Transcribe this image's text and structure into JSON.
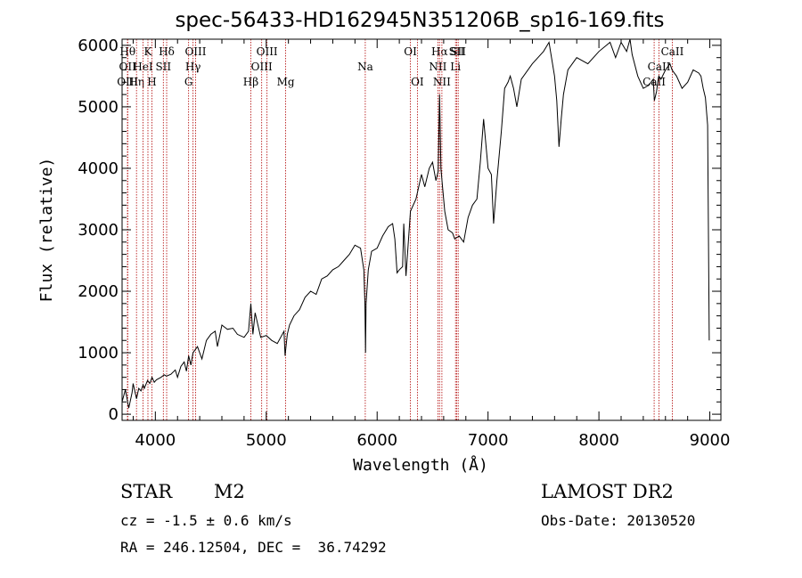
{
  "chart_data": {
    "type": "line",
    "title": "spec-56433-HD162945N351206B_sp16-169.fits",
    "xlabel": "Wavelength (Å)",
    "ylabel": "Flux (relative)",
    "xlim": [
      3700,
      9100
    ],
    "ylim": [
      -100,
      6100
    ],
    "xticks": [
      4000,
      5000,
      6000,
      7000,
      8000,
      9000
    ],
    "yticks": [
      0,
      1000,
      2000,
      3000,
      4000,
      5000,
      6000
    ],
    "grid": false,
    "series": [
      {
        "x": [
          3700,
          3730,
          3760,
          3790,
          3800,
          3830,
          3850,
          3870,
          3890,
          3900,
          3930,
          3950,
          3970,
          3990,
          4010,
          4050,
          4080,
          4100,
          4140,
          4180,
          4200,
          4230,
          4260,
          4280,
          4300,
          4320,
          4340,
          4360,
          4380,
          4420,
          4460,
          4500,
          4540,
          4560,
          4600,
          4650,
          4700,
          4740,
          4800,
          4840,
          4861,
          4880,
          4900,
          4950,
          5000,
          5050,
          5100,
          5160,
          5170,
          5190,
          5210,
          5250,
          5300,
          5350,
          5400,
          5450,
          5500,
          5550,
          5600,
          5650,
          5700,
          5750,
          5800,
          5850,
          5880,
          5890,
          5895,
          5900,
          5920,
          5950,
          6000,
          6050,
          6100,
          6140,
          6160,
          6180,
          6200,
          6230,
          6240,
          6260,
          6300,
          6350,
          6400,
          6430,
          6470,
          6500,
          6530,
          6550,
          6563,
          6575,
          6590,
          6610,
          6640,
          6680,
          6700,
          6740,
          6780,
          6820,
          6860,
          6900,
          6930,
          6960,
          7000,
          7030,
          7050,
          7080,
          7120,
          7150,
          7180,
          7200,
          7230,
          7260,
          7300,
          7400,
          7500,
          7550,
          7600,
          7620,
          7640,
          7660,
          7680,
          7720,
          7800,
          7900,
          8000,
          8100,
          8150,
          8200,
          8250,
          8280,
          8300,
          8350,
          8400,
          8450,
          8490,
          8500,
          8520,
          8530,
          8540,
          8560,
          8600,
          8640,
          8660,
          8700,
          8750,
          8800,
          8850,
          8900,
          8920,
          8940,
          8960,
          8980,
          8995
        ],
        "y": [
          200,
          400,
          100,
          350,
          500,
          250,
          420,
          380,
          480,
          420,
          550,
          500,
          600,
          520,
          560,
          600,
          640,
          620,
          650,
          720,
          600,
          780,
          850,
          700,
          950,
          800,
          1000,
          1050,
          1100,
          900,
          1200,
          1300,
          1350,
          1100,
          1450,
          1380,
          1400,
          1300,
          1250,
          1350,
          1800,
          1300,
          1650,
          1250,
          1280,
          1200,
          1150,
          1350,
          950,
          1300,
          1450,
          1600,
          1700,
          1900,
          2000,
          1950,
          2200,
          2250,
          2350,
          2400,
          2500,
          2600,
          2750,
          2700,
          2350,
          1800,
          1000,
          1800,
          2350,
          2650,
          2700,
          2900,
          3050,
          3100,
          2850,
          2300,
          2350,
          2400,
          3100,
          2250,
          3300,
          3500,
          3900,
          3700,
          4000,
          4100,
          3800,
          3950,
          5200,
          4000,
          3700,
          3300,
          3000,
          2950,
          2850,
          2900,
          2800,
          3200,
          3400,
          3500,
          4100,
          4800,
          4000,
          3900,
          3100,
          3800,
          4600,
          5300,
          5400,
          5500,
          5300,
          5000,
          5450,
          5700,
          5900,
          6050,
          5500,
          5100,
          4350,
          4800,
          5200,
          5600,
          5800,
          5700,
          5900,
          6050,
          5800,
          6050,
          5900,
          6100,
          5850,
          5500,
          5300,
          5350,
          5450,
          5100,
          5250,
          5400,
          5500,
          5450,
          5600,
          5700,
          5600,
          5500,
          5300,
          5400,
          5600,
          5550,
          5500,
          5300,
          5150,
          4700,
          1200
        ]
      }
    ],
    "lines": [
      {
        "w": 3750,
        "label": "Hθ",
        "row": 0
      },
      {
        "w": 3750,
        "label": "OII",
        "row": 1
      },
      {
        "w": 3750,
        "label": "OIII",
        "row": 2
      },
      {
        "w": 3830,
        "label": "Hη",
        "row": 2
      },
      {
        "w": 3889,
        "label": "HeI",
        "row": 1
      },
      {
        "w": 3933,
        "label": "K",
        "row": 0
      },
      {
        "w": 3969,
        "label": "H",
        "row": 2
      },
      {
        "w": 4072,
        "label": "SII",
        "row": 1
      },
      {
        "w": 4102,
        "label": "Hδ",
        "row": 0
      },
      {
        "w": 4300,
        "label": "G",
        "row": 2
      },
      {
        "w": 4340,
        "label": "Hγ",
        "row": 1
      },
      {
        "w": 4363,
        "label": "OIII",
        "row": 0
      },
      {
        "w": 4861,
        "label": "Hβ",
        "row": 2
      },
      {
        "w": 4959,
        "label": "OIII",
        "row": 1
      },
      {
        "w": 5007,
        "label": "OIII",
        "row": 0
      },
      {
        "w": 5175,
        "label": "Mg",
        "row": 2
      },
      {
        "w": 5893,
        "label": "Na",
        "row": 1
      },
      {
        "w": 6300,
        "label": "OI",
        "row": 0
      },
      {
        "w": 6363,
        "label": "OI",
        "row": 2
      },
      {
        "w": 6548,
        "label": "NII",
        "row": 1
      },
      {
        "w": 6563,
        "label": "Hα",
        "row": 0
      },
      {
        "w": 6584,
        "label": "NII",
        "row": 2
      },
      {
        "w": 6707,
        "label": "Li",
        "row": 1
      },
      {
        "w": 6717,
        "label": "SII",
        "row": 0
      },
      {
        "w": 6731,
        "label": "SII",
        "row": 0
      },
      {
        "w": 8498,
        "label": "CaII",
        "row": 2
      },
      {
        "w": 8542,
        "label": "CaII",
        "row": 1
      },
      {
        "w": 8662,
        "label": "CaII",
        "row": 0
      }
    ]
  },
  "info": {
    "object_class": "STAR",
    "subclass": "M2",
    "survey": "LAMOST DR2",
    "redshift_line": "cz = -1.5 ± 0.6 km/s",
    "obs_date_line": "Obs-Date: 20130520",
    "coords_line": "RA = 246.12504, DEC =  36.74292"
  },
  "colors": {
    "spectrum": "#000000",
    "line_markers": "#b00000"
  }
}
